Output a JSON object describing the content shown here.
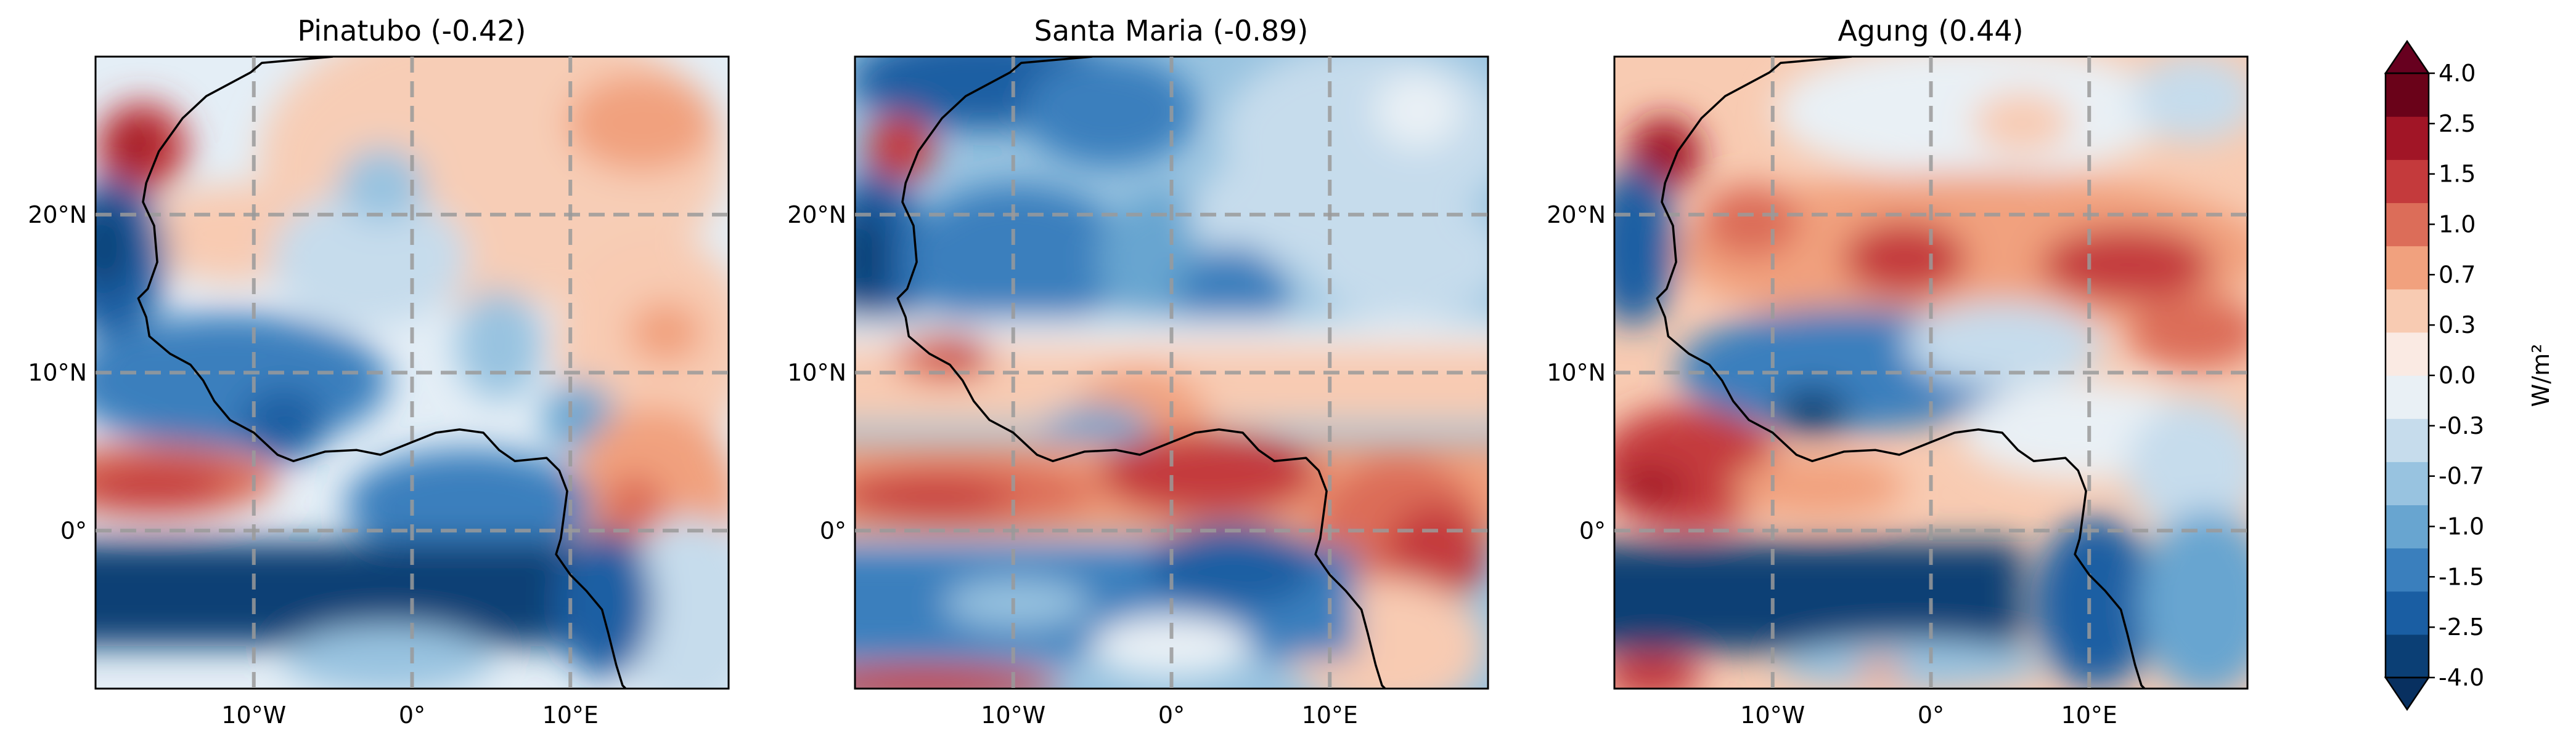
{
  "panels": [
    {
      "id": "pinatubo",
      "title": "Pinatubo (-0.42)",
      "pattern": "pinatubo"
    },
    {
      "id": "santa-maria",
      "title": "Santa Maria (-0.89)",
      "pattern": "santamaria"
    },
    {
      "id": "agung",
      "title": "Agung (0.44)",
      "pattern": "agung"
    }
  ],
  "x_ticks": [
    "10°W",
    "0°",
    "10°E"
  ],
  "y_ticks": [
    "20°N",
    "10°N",
    "0°"
  ],
  "map_extent": {
    "lon": [
      -20,
      20
    ],
    "lat": [
      -10,
      30
    ]
  },
  "colorbar": {
    "unit_label": "W/m²",
    "levels": [
      "-4.0",
      "-2.5",
      "-1.5",
      "-1.0",
      "-0.7",
      "-0.3",
      "0.0",
      "0.3",
      "0.7",
      "1.0",
      "1.5",
      "2.5",
      "4.0"
    ],
    "colors": [
      "#0b3f75",
      "#1a5ea3",
      "#3a7fbd",
      "#68a5d0",
      "#98c3e0",
      "#c6dcec",
      "#e9f0f5",
      "#faeae3",
      "#f8cbb2",
      "#f1a17e",
      "#dc6d59",
      "#c43a3c",
      "#a11526",
      "#6a0219"
    ],
    "under_color": "#083060",
    "over_color": "#67001f"
  }
}
